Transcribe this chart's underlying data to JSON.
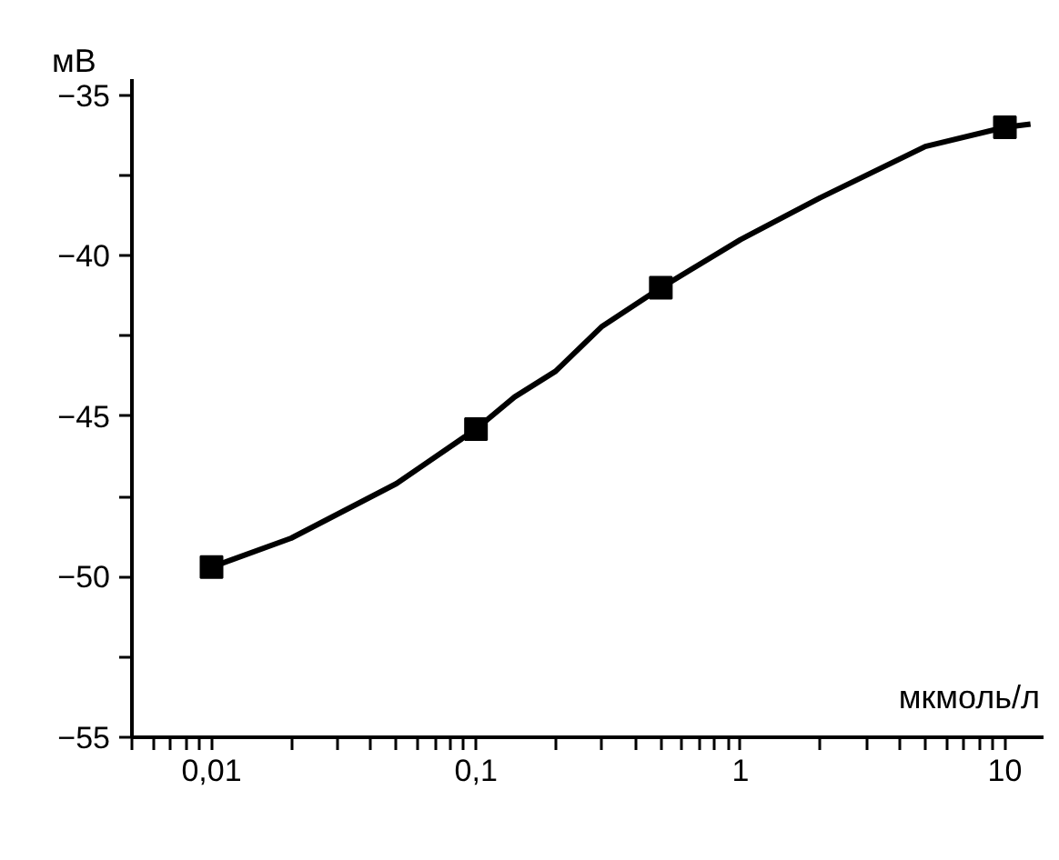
{
  "chart_data": {
    "type": "scatter",
    "xlabel": "мкмоль/л",
    "ylabel": "мВ",
    "log": "x",
    "grid": false,
    "marker": "square",
    "series": [
      {
        "color": "#000000",
        "x": [
          0.01,
          0.1,
          0.5,
          10
        ],
        "values": [
          -49.7,
          -45.4,
          -41.0,
          -36.0
        ]
      },
      {
        "type": "line",
        "color": "#000000",
        "marker": "none",
        "line_style": "solid",
        "x": [
          0.01,
          0.02,
          0.05,
          0.1,
          0.14,
          0.2,
          0.3,
          0.5,
          1,
          2,
          5,
          10,
          12.5
        ],
        "values": [
          -49.7,
          -48.8,
          -47.1,
          -45.4,
          -44.4,
          -43.6,
          -42.2,
          -41.0,
          -39.5,
          -38.2,
          -36.6,
          -36.0,
          -35.9
        ]
      }
    ],
    "xlim": [
      0.005,
      14
    ],
    "ylim": [
      -55,
      -34.5
    ],
    "xticks": [
      {
        "value": 0.005,
        "label": null
      },
      {
        "value": 0.006,
        "label": null
      },
      {
        "value": 0.007,
        "label": null
      },
      {
        "value": 0.008,
        "label": null
      },
      {
        "value": 0.009,
        "label": null
      },
      {
        "value": 0.01,
        "label": "0,01"
      },
      {
        "value": 0.02,
        "label": null
      },
      {
        "value": 0.03,
        "label": null
      },
      {
        "value": 0.04,
        "label": null
      },
      {
        "value": 0.05,
        "label": null
      },
      {
        "value": 0.06,
        "label": null
      },
      {
        "value": 0.07,
        "label": null
      },
      {
        "value": 0.08,
        "label": null
      },
      {
        "value": 0.09,
        "label": null
      },
      {
        "value": 0.1,
        "label": "0,1"
      },
      {
        "value": 0.2,
        "label": null
      },
      {
        "value": 0.3,
        "label": null
      },
      {
        "value": 0.4,
        "label": null
      },
      {
        "value": 0.5,
        "label": null
      },
      {
        "value": 0.6,
        "label": null
      },
      {
        "value": 0.7,
        "label": null
      },
      {
        "value": 0.8,
        "label": null
      },
      {
        "value": 0.9,
        "label": null
      },
      1,
      {
        "value": 2,
        "label": null
      },
      {
        "value": 3,
        "label": null
      },
      {
        "value": 4,
        "label": null
      },
      {
        "value": 5,
        "label": null
      },
      {
        "value": 6,
        "label": null
      },
      {
        "value": 7,
        "label": null
      },
      {
        "value": 8,
        "label": null
      },
      {
        "value": 9,
        "label": null
      },
      10
    ],
    "yticks": [
      {
        "value": -55,
        "label": "−55"
      },
      {
        "value": -52.5,
        "label": null
      },
      {
        "value": -50,
        "label": "−50"
      },
      {
        "value": -47.5,
        "label": null
      },
      {
        "value": -45,
        "label": "−45"
      },
      {
        "value": -42.5,
        "label": null
      },
      {
        "value": -40,
        "label": "−40"
      },
      {
        "value": -37.5,
        "label": null
      },
      {
        "value": -35,
        "label": "−35"
      }
    ]
  }
}
